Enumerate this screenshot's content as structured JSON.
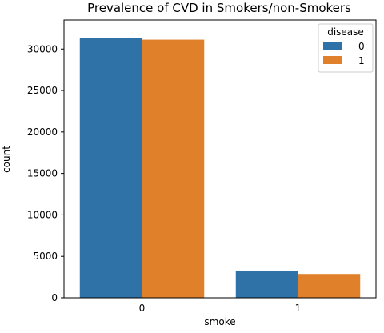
{
  "chart_data": {
    "type": "bar",
    "title": "Prevalence of CVD in Smokers/non-Smokers",
    "xlabel": "smoke",
    "ylabel": "count",
    "categories": [
      "0",
      "1"
    ],
    "series": [
      {
        "name": "0",
        "color": "#2f72a8",
        "values": [
          31400,
          3300
        ]
      },
      {
        "name": "1",
        "color": "#e0802a",
        "values": [
          31150,
          2900
        ]
      }
    ],
    "ylim": [
      0,
      33500
    ],
    "yticks": [
      0,
      5000,
      10000,
      15000,
      20000,
      25000,
      30000
    ],
    "legend": {
      "title": "disease",
      "position": "top-right"
    },
    "grid": false
  }
}
